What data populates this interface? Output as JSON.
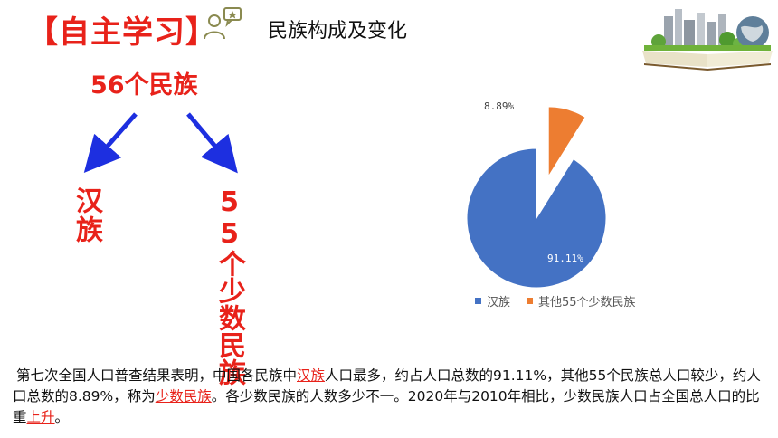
{
  "header": {
    "title": "【自主学习】",
    "subtitle": "民族构成及变化"
  },
  "diagram": {
    "root": "56个民族",
    "left_branch": "汉族",
    "right_branch": "55个少数民族"
  },
  "chart_data": {
    "type": "pie",
    "slices": [
      {
        "label": "汉族",
        "value": 91.11,
        "value_label": "91.11%",
        "color": "#4472c4"
      },
      {
        "label": "其他55个少数民族",
        "value": 8.89,
        "value_label": "8.89%",
        "color": "#ed7d31"
      }
    ],
    "legend_position": "bottom"
  },
  "paragraph": {
    "p1": "第七次全国人口普查结果表明，中国各民族中",
    "h1": "汉族",
    "p2": "人口最多，约占人口总数的91.11%，其他55个民族总人口较少，约人口总数的8.89%，称为",
    "h2": "少数民族",
    "p3": "。各少数民族的人数多少不一。2020年与2010年相比，少数民族人口占全国总人口的比重",
    "h3": "上升",
    "p4": "。"
  },
  "icons": {
    "title_icon": "person-chat-icon",
    "banner": "book-city-globe-illustration"
  }
}
